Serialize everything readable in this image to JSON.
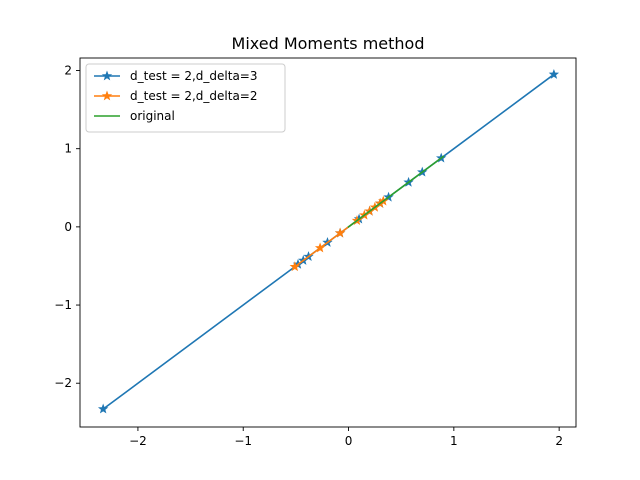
{
  "chart_data": {
    "type": "line",
    "title": "Mixed Moments method",
    "xlabel": "",
    "ylabel": "",
    "xlim": [
      -2.55,
      2.16
    ],
    "ylim": [
      -2.56,
      2.16
    ],
    "xticks": [
      -2,
      -1,
      0,
      1,
      2
    ],
    "yticks": [
      -2,
      -1,
      0,
      1,
      2
    ],
    "xtick_labels": [
      "−2",
      "−1",
      "0",
      "1",
      "2"
    ],
    "ytick_labels": [
      "−2",
      "−1",
      "0",
      "1",
      "2"
    ],
    "grid": false,
    "legend_position": "upper-left",
    "series": [
      {
        "name": "d_test = 2,d_delta=3",
        "color": "#1f77b4",
        "marker": "star",
        "points": [
          [
            -2.33,
            -2.33
          ],
          [
            -0.48,
            -0.48
          ],
          [
            -0.43,
            -0.43
          ],
          [
            -0.38,
            -0.38
          ],
          [
            -0.2,
            -0.2
          ],
          [
            -0.08,
            -0.08
          ],
          [
            0.1,
            0.1
          ],
          [
            0.2,
            0.2
          ],
          [
            0.3,
            0.3
          ],
          [
            0.38,
            0.38
          ],
          [
            0.57,
            0.57
          ],
          [
            0.7,
            0.7
          ],
          [
            0.88,
            0.88
          ],
          [
            1.95,
            1.95
          ]
        ]
      },
      {
        "name": "d_test = 2,d_delta=2",
        "color": "#ff7f0e",
        "marker": "star",
        "points": [
          [
            -0.51,
            -0.51
          ],
          [
            -0.27,
            -0.27
          ],
          [
            -0.08,
            -0.08
          ],
          [
            0.08,
            0.08
          ],
          [
            0.15,
            0.15
          ],
          [
            0.2,
            0.2
          ],
          [
            0.25,
            0.25
          ],
          [
            0.3,
            0.3
          ],
          [
            0.33,
            0.33
          ]
        ]
      },
      {
        "name": "original",
        "color": "#2ca02c",
        "marker": "none",
        "points": [
          [
            0.0,
            0.0
          ],
          [
            0.9,
            0.9
          ]
        ]
      }
    ]
  }
}
